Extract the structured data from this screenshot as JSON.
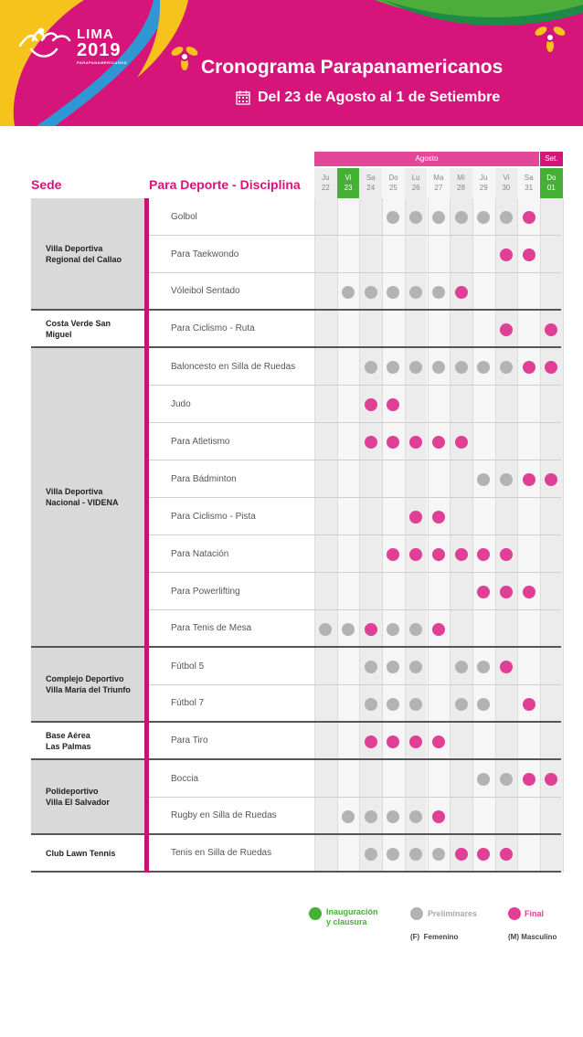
{
  "header": {
    "logo": {
      "name": "LIMA",
      "year": "2019",
      "subtitle": "PARAPANAMERICANOS"
    },
    "title": "Cronograma Parapanamericanos",
    "subtitle": "Del 23 de Agosto al 1 de Setiembre",
    "calendar_icon": "calendar-icon"
  },
  "colors": {
    "brand": "#d6157a",
    "ceremony": "#46b036",
    "preliminary": "#b3b3b3",
    "final": "#df3f95"
  },
  "table": {
    "venue_header": "Sede",
    "discipline_header": "Para Deporte - Disciplina",
    "months": [
      {
        "label": "Agosto",
        "color": "#e4479a"
      },
      {
        "label": "Set.",
        "color": "#d6157a"
      }
    ],
    "days": [
      {
        "dow": "Ju",
        "num": "22",
        "highlight": false
      },
      {
        "dow": "Vi",
        "num": "23",
        "highlight": true
      },
      {
        "dow": "Sa",
        "num": "24",
        "highlight": false
      },
      {
        "dow": "Do",
        "num": "25",
        "highlight": false
      },
      {
        "dow": "Lu",
        "num": "26",
        "highlight": false
      },
      {
        "dow": "Ma",
        "num": "27",
        "highlight": false
      },
      {
        "dow": "Mi",
        "num": "28",
        "highlight": false
      },
      {
        "dow": "Ju",
        "num": "29",
        "highlight": false
      },
      {
        "dow": "Vi",
        "num": "30",
        "highlight": false
      },
      {
        "dow": "Sa",
        "num": "31",
        "highlight": false
      },
      {
        "dow": "Do",
        "num": "01",
        "highlight": true
      }
    ],
    "venues": [
      {
        "name": "Villa Deportiva\nRegional del Callao",
        "sports": [
          {
            "name": "Golbol",
            "events": "---ppppppf-"
          },
          {
            "name": "Para Taekwondo",
            "events": "--------ff-"
          },
          {
            "name": "Vóleibol Sentado",
            "events": "-pppppf----"
          }
        ]
      },
      {
        "name": "Costa Verde San Miguel",
        "sports": [
          {
            "name": "Para Ciclismo - Ruta",
            "events": "--------f-f"
          }
        ]
      },
      {
        "name": "Villa Deportiva\nNacional - VIDENA",
        "sports": [
          {
            "name": "Baloncesto en Silla de Ruedas",
            "events": "--pppppppff"
          },
          {
            "name": "Judo",
            "events": "--ff-------"
          },
          {
            "name": "Para Atletismo",
            "events": "--fffff----"
          },
          {
            "name": "Para Bádminton",
            "events": "-------ppff"
          },
          {
            "name": "Para Ciclismo - Pista",
            "events": "----ff-----"
          },
          {
            "name": "Para Natación",
            "events": "---ffffff--"
          },
          {
            "name": "Para Powerlifting",
            "events": "-------fff-"
          },
          {
            "name": "Para Tenis de Mesa",
            "events": "ppfppf-----"
          }
        ]
      },
      {
        "name": "Complejo Deportivo\nVilla María del Triunfo",
        "sports": [
          {
            "name": "Fútbol 5",
            "events": "--ppp-ppf--"
          },
          {
            "name": "Fútbol 7",
            "events": "--ppp-pp-f-"
          }
        ]
      },
      {
        "name": "Base Aérea\nLas Palmas",
        "sports": [
          {
            "name": "Para Tiro",
            "events": "--ffff-----"
          }
        ]
      },
      {
        "name": "Polideportivo\nVilla El Salvador",
        "sports": [
          {
            "name": "Boccia",
            "events": "-------ppff"
          },
          {
            "name": "Rugby en Silla de Ruedas",
            "events": "-ppppf-----"
          }
        ]
      },
      {
        "name": "Club Lawn Tennis",
        "sports": [
          {
            "name": "Tenis en Silla de Ruedas",
            "events": "--ppppfff--"
          }
        ]
      }
    ]
  },
  "legend": {
    "ceremony": "Inauguración\ny clausura",
    "preliminary": "Preliminares",
    "final": "Final",
    "female": "(F)  Femenino",
    "male": "(M) Masculino"
  }
}
